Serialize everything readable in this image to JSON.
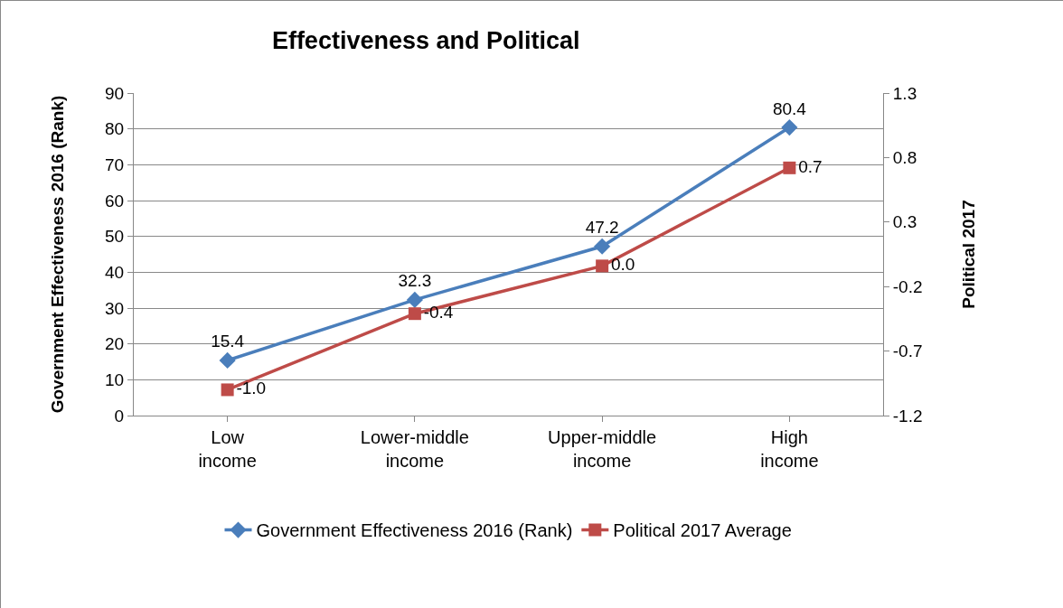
{
  "chart_data": {
    "type": "line",
    "title": "Effectiveness and Political",
    "categories": [
      "Low income",
      "Lower-middle income",
      "Upper-middle income",
      "High income"
    ],
    "ylabel": "Government Effectiveness 2016 (Rank)",
    "y2label": "Political 2017",
    "ylim": [
      0,
      90
    ],
    "yticks": [
      0,
      10,
      20,
      30,
      40,
      50,
      60,
      70,
      80,
      90
    ],
    "y2lim": [
      -1.2,
      1.3
    ],
    "y2ticks": [
      -1.2,
      -0.7,
      -0.2,
      0.3,
      0.8,
      1.3
    ],
    "grid": "y",
    "legend": "bottom",
    "series": [
      {
        "name": "Government Effectiveness 2016 (Rank)",
        "color": "#4a7ebb",
        "marker": "diamond",
        "values": [
          15.4,
          32.3,
          47.2,
          80.4
        ],
        "value_labels": [
          "15.4",
          "32.3",
          "47.2",
          "80.4"
        ]
      },
      {
        "name": "Political 2017 Average",
        "color": "#be4b48",
        "marker": "square",
        "axis": "y2",
        "values": [
          -1.0,
          -0.41,
          -0.04,
          0.72
        ],
        "value_labels": [
          "-1.0",
          "-0.4",
          "0.0",
          "0.7"
        ]
      }
    ]
  }
}
